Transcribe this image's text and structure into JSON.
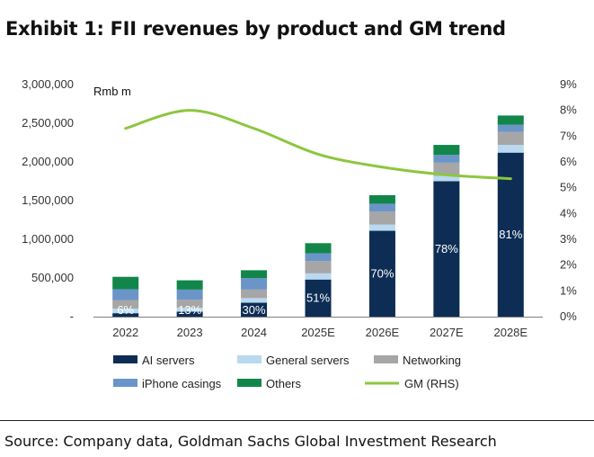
{
  "title": "Exhibit 1: FII revenues by product and GM trend",
  "source": "Source: Company data, Goldman Sachs Global Investment Research",
  "chart_data": {
    "type": "bar",
    "stacked": true,
    "unit_label": "Rmb m",
    "categories": [
      "2022",
      "2023",
      "2024",
      "2025E",
      "2026E",
      "2027E",
      "2028E"
    ],
    "ylim": [
      0,
      3000000
    ],
    "y_ticks": [
      "-",
      "500,000",
      "1,000,000",
      "1,500,000",
      "2,000,000",
      "2,500,000",
      "3,000,000"
    ],
    "y2lim": [
      0,
      9
    ],
    "y2_ticks": [
      "0%",
      "1%",
      "2%",
      "3%",
      "4%",
      "5%",
      "6%",
      "7%",
      "8%",
      "9%"
    ],
    "series": [
      {
        "name": "AI servers",
        "color": "#0d2d54",
        "values": [
          45000,
          65000,
          180000,
          480000,
          1110000,
          1750000,
          2120000
        ]
      },
      {
        "name": "General servers",
        "color": "#b8d9f0",
        "values": [
          60000,
          50000,
          60000,
          80000,
          80000,
          70000,
          100000
        ]
      },
      {
        "name": "Networking",
        "color": "#a6a6a6",
        "values": [
          110000,
          105000,
          110000,
          160000,
          170000,
          170000,
          170000
        ]
      },
      {
        "name": "iPhone casings",
        "color": "#6b95c9",
        "values": [
          140000,
          130000,
          150000,
          100000,
          100000,
          100000,
          90000
        ]
      },
      {
        "name": "Others",
        "color": "#12864a",
        "values": [
          160000,
          120000,
          100000,
          130000,
          110000,
          130000,
          120000
        ]
      }
    ],
    "line_series": {
      "name": "GM (RHS)",
      "color": "#8dc63f",
      "axis": "right",
      "values": [
        7.3,
        8.0,
        7.3,
        6.3,
        5.8,
        5.5,
        5.35
      ]
    },
    "data_labels": [
      "6%",
      "13%",
      "30%",
      "51%",
      "70%",
      "78%",
      "81%"
    ],
    "legend": "bottom"
  }
}
